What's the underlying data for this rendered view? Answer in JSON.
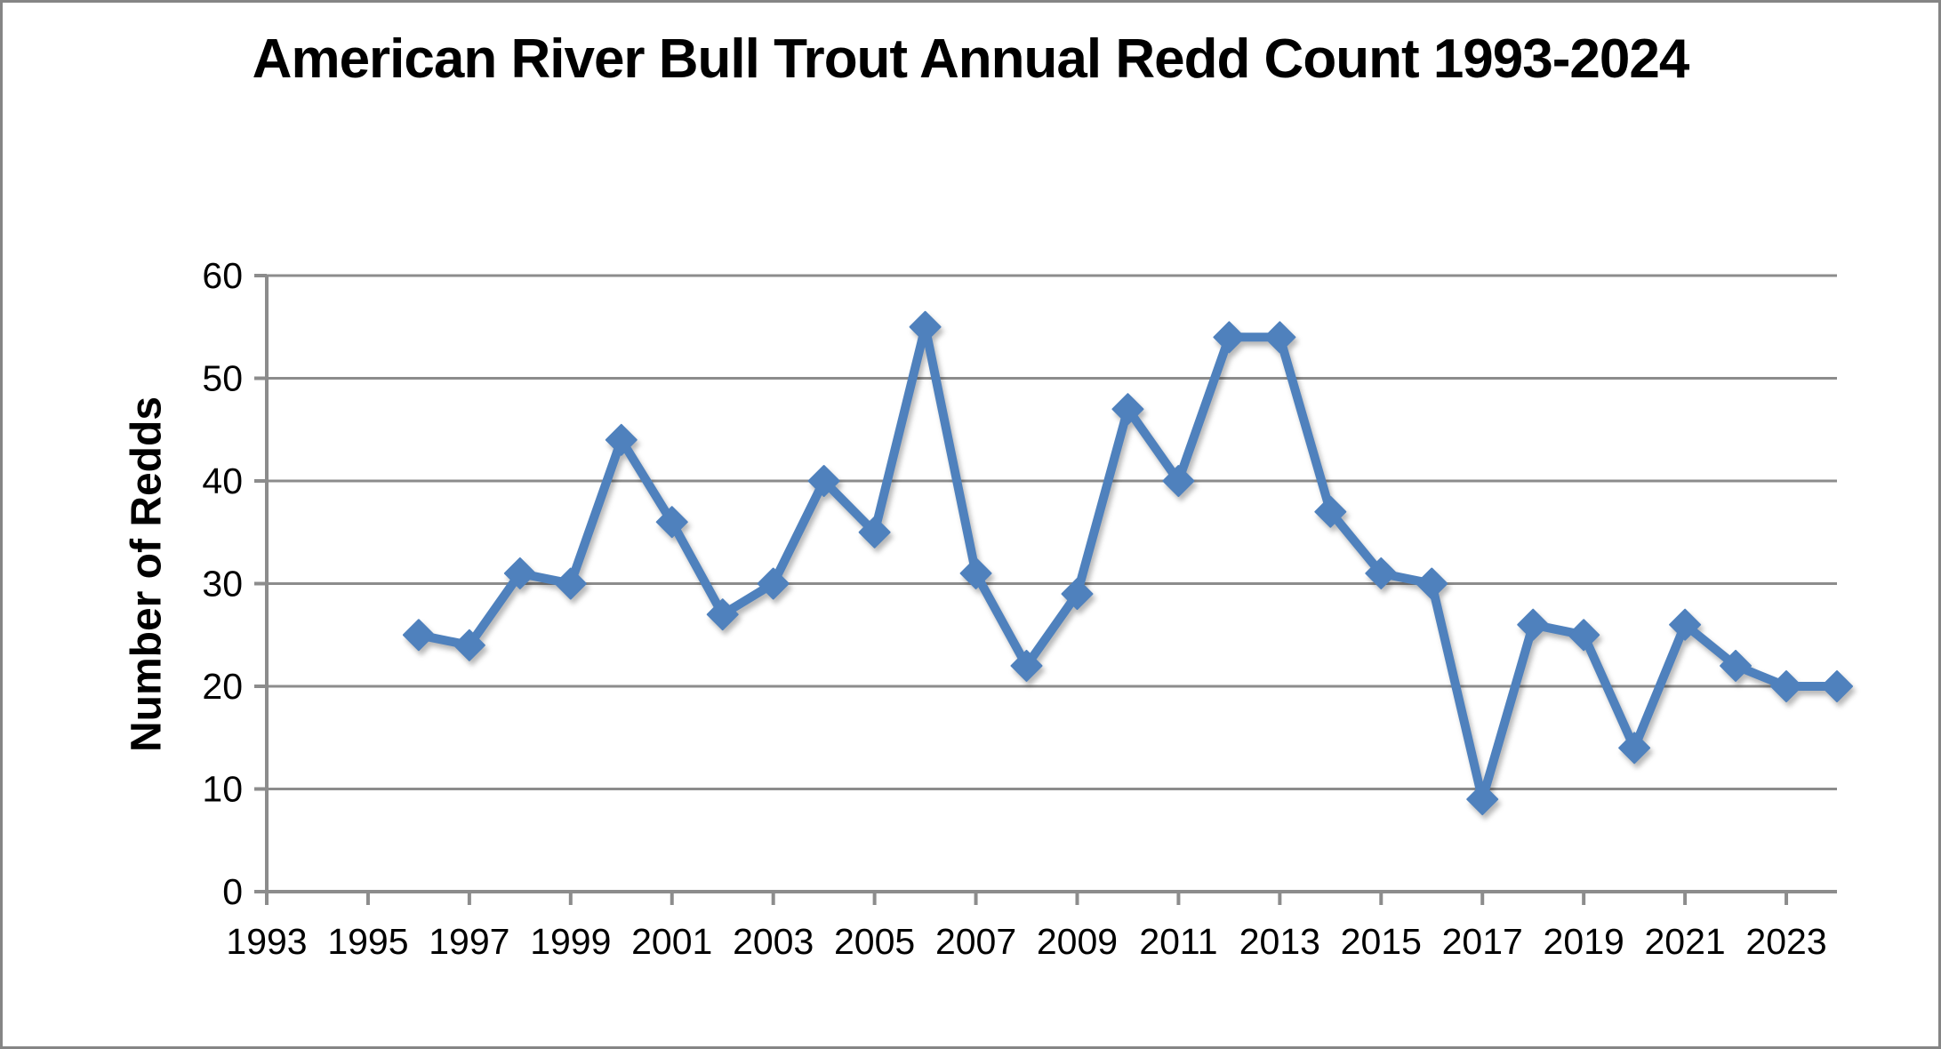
{
  "chart_data": {
    "type": "line",
    "title": "American River Bull Trout Annual Redd Count 1993-2024",
    "xlabel": "",
    "ylabel": "Number of Redds",
    "x": [
      1996,
      1997,
      1998,
      1999,
      2000,
      2001,
      2002,
      2003,
      2004,
      2005,
      2006,
      2007,
      2008,
      2009,
      2010,
      2011,
      2012,
      2013,
      2014,
      2015,
      2016,
      2017,
      2018,
      2019,
      2020,
      2021,
      2022,
      2023,
      2024
    ],
    "values": [
      25,
      24,
      31,
      30,
      44,
      36,
      27,
      30,
      40,
      35,
      55,
      31,
      22,
      29,
      47,
      40,
      54,
      54,
      37,
      31,
      30,
      9,
      26,
      25,
      14,
      26,
      22,
      20,
      20
    ],
    "series_name": "Annual Redd Count",
    "ylim": [
      0,
      60
    ],
    "y_ticks": [
      0,
      10,
      20,
      30,
      40,
      50,
      60
    ],
    "x_ticks": [
      1993,
      1995,
      1997,
      1999,
      2001,
      2003,
      2005,
      2007,
      2009,
      2011,
      2013,
      2015,
      2017,
      2019,
      2021,
      2023
    ],
    "x_axis_start": 1993,
    "x_axis_end": 2024,
    "grid": true,
    "legend": "none",
    "marker": "diamond",
    "line_color": "#4F81BD",
    "axis_color": "#8C8C8C",
    "grid_color": "#8C8C8C",
    "label_color": "#000000"
  }
}
